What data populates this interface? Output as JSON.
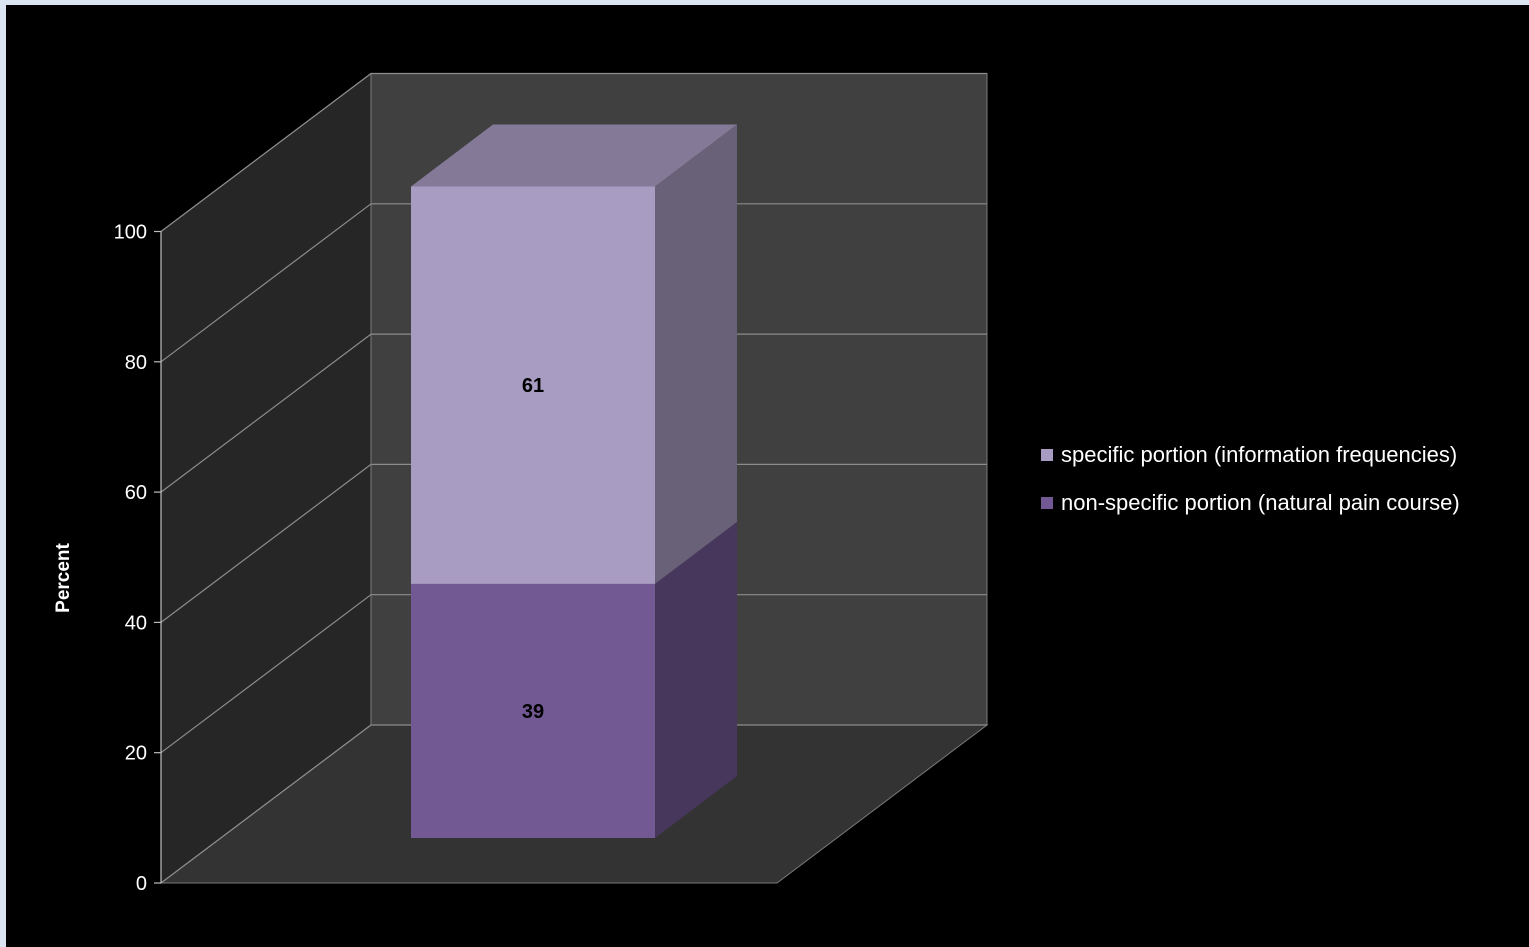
{
  "chart_data": {
    "type": "bar",
    "stacked": true,
    "three_d": true,
    "categories": [
      ""
    ],
    "series": [
      {
        "name": "non-specific portion (natural pain course)",
        "values": [
          39
        ],
        "color": "#735994"
      },
      {
        "name": "specific portion (information frequencies)",
        "values": [
          61
        ],
        "color": "#a99cc2"
      }
    ],
    "ylabel": "Percent",
    "xlabel": "",
    "ylim": [
      0,
      100
    ],
    "yticks": [
      "0",
      "20",
      "40",
      "60",
      "80",
      "100"
    ],
    "data_labels": [
      "39",
      "61"
    ],
    "grid": true,
    "legend_position": "right",
    "background": "#000000",
    "wall_color": "#404040",
    "floor_color": "#333333"
  }
}
